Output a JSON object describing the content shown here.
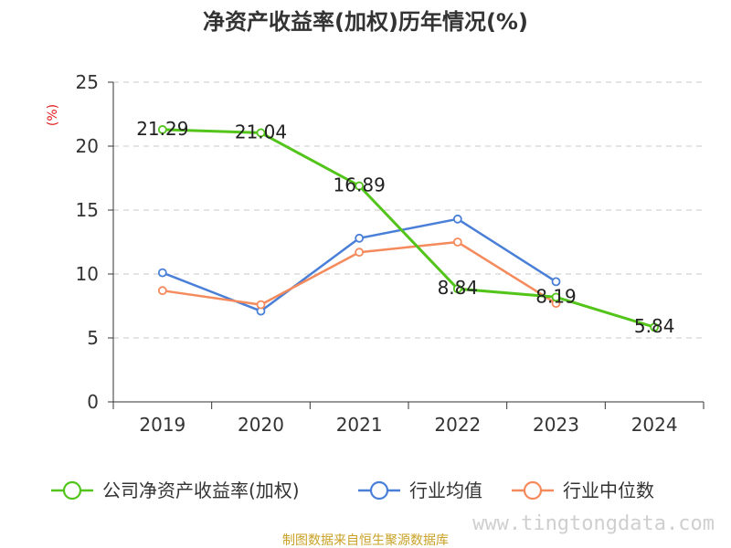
{
  "chart_data": {
    "type": "line",
    "title": "净资产收益率(加权)历年情况(%)",
    "ylabel": "(%)",
    "categories": [
      "2019",
      "2020",
      "2021",
      "2022",
      "2023",
      "2024"
    ],
    "ylim": [
      0,
      25
    ],
    "yticks": [
      0,
      5,
      10,
      15,
      20,
      25
    ],
    "grid": true,
    "legend_position": "bottom",
    "series": [
      {
        "name": "公司净资产收益率(加权)",
        "color": "#52c41a",
        "values": [
          21.29,
          21.04,
          16.89,
          8.84,
          8.19,
          5.84
        ],
        "labels": [
          "21.29",
          "21.04",
          "16.89",
          "8.84",
          "8.19",
          "5.84"
        ]
      },
      {
        "name": "行业均值",
        "color": "#4a7fd8",
        "values": [
          10.1,
          7.1,
          12.8,
          14.3,
          9.4,
          null
        ]
      },
      {
        "name": "行业中位数",
        "color": "#f58a5c",
        "values": [
          8.7,
          7.6,
          11.7,
          12.5,
          7.7,
          null
        ]
      }
    ]
  },
  "source_text": "制图数据来自恒生聚源数据库",
  "watermark_text": "www.tingtongdata.com"
}
